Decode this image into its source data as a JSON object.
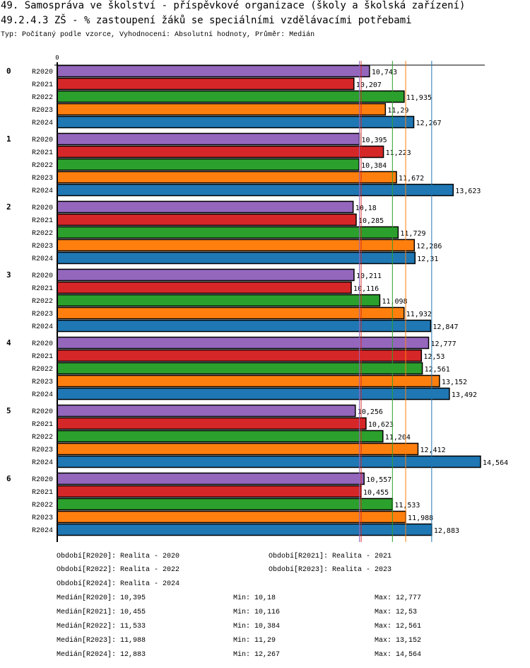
{
  "header": {
    "title": "49. Samospráva ve školství - příspěvkové organizace (školy a školská zařízení)",
    "subtitle": "49.2.4.3 ZŠ - % zastoupení žáků se speciálními vzdělávacími potřebami",
    "info": "Typ: Počítaný podle vzorce, Vyhodnocení: Absolutní hodnoty, Průměr: Medián"
  },
  "chart_data": {
    "type": "bar",
    "orientation": "horizontal",
    "title": "49.2.4.3 ZŠ - % zastoupení žáků se speciálními vzdělávacími potřebami",
    "xlabel": "",
    "ylabel": "",
    "axis_zero_label": "0",
    "xlim": [
      0,
      14.564
    ],
    "categories": [
      "0",
      "1",
      "2",
      "3",
      "4",
      "5",
      "6"
    ],
    "series": [
      {
        "name": "R2020",
        "color": "#9467bd",
        "values": [
          10.743,
          10.395,
          10.18,
          10.211,
          12.777,
          10.256,
          10.557
        ],
        "labels": [
          "10,743",
          "10,395",
          "10,18",
          "10,211",
          "12,777",
          "10,256",
          "10,557"
        ]
      },
      {
        "name": "R2021",
        "color": "#d62728",
        "values": [
          10.207,
          11.223,
          10.285,
          10.116,
          12.53,
          10.623,
          10.455
        ],
        "labels": [
          "10,207",
          "11,223",
          "10,285",
          "10,116",
          "12,53",
          "10,623",
          "10,455"
        ]
      },
      {
        "name": "R2022",
        "color": "#2ca02c",
        "values": [
          11.935,
          10.384,
          11.729,
          11.098,
          12.561,
          11.204,
          11.533
        ],
        "labels": [
          "11,935",
          "10,384",
          "11,729",
          "11,098",
          "12,561",
          "11,204",
          "11,533"
        ]
      },
      {
        "name": "R2023",
        "color": "#ff7f0e",
        "values": [
          11.29,
          11.672,
          12.286,
          11.932,
          13.152,
          12.412,
          11.988
        ],
        "labels": [
          "11,29",
          "11,672",
          "12,286",
          "11,932",
          "13,152",
          "12,412",
          "11,988"
        ]
      },
      {
        "name": "R2024",
        "color": "#1f77b4",
        "values": [
          12.267,
          13.623,
          12.31,
          12.847,
          13.492,
          14.564,
          12.883
        ],
        "labels": [
          "12,267",
          "13,623",
          "12,31",
          "12,847",
          "13,492",
          "14,564",
          "12,883"
        ]
      }
    ],
    "median_lines": [
      {
        "series": "R2020",
        "value": 10.395
      },
      {
        "series": "R2021",
        "value": 10.455
      },
      {
        "series": "R2022",
        "value": 11.533
      },
      {
        "series": "R2023",
        "value": 11.988
      },
      {
        "series": "R2024",
        "value": 12.883
      }
    ],
    "grid": false,
    "legend_position": "bottom"
  },
  "legend": {
    "periods": [
      "Období[R2020]: Realita - 2020",
      "Období[R2021]: Realita - 2021",
      "Období[R2022]: Realita - 2022",
      "Období[R2023]: Realita - 2023",
      "Období[R2024]: Realita - 2024"
    ],
    "stats": [
      {
        "median": "Medián[R2020]: 10,395",
        "min": "Min: 10,18",
        "max": "Max: 12,777"
      },
      {
        "median": "Medián[R2021]: 10,455",
        "min": "Min: 10,116",
        "max": "Max: 12,53"
      },
      {
        "median": "Medián[R2022]: 11,533",
        "min": "Min: 10,384",
        "max": "Max: 12,561"
      },
      {
        "median": "Medián[R2023]: 11,988",
        "min": "Min: 11,29",
        "max": "Max: 13,152"
      },
      {
        "median": "Medián[R2024]: 12,883",
        "min": "Min: 12,267",
        "max": "Max: 14,564"
      }
    ]
  }
}
